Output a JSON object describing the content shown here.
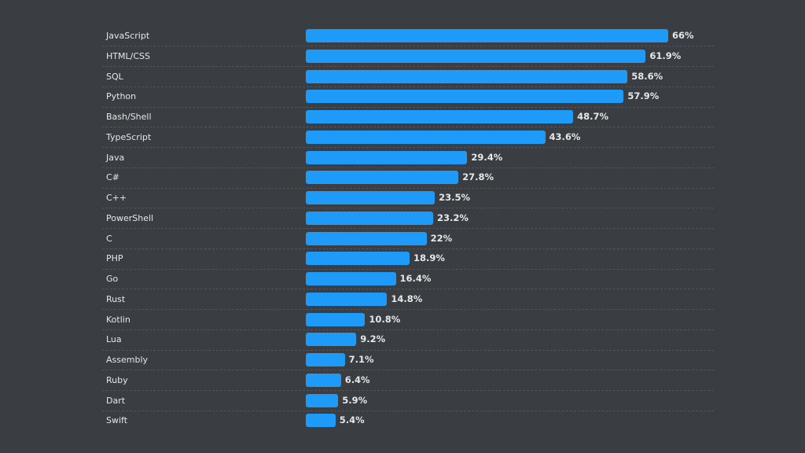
{
  "chart_data": {
    "type": "bar",
    "orientation": "horizontal",
    "title": "",
    "xlabel": "",
    "ylabel": "",
    "value_suffix": "%",
    "xlim": [
      0,
      66
    ],
    "grid": false,
    "legend": "none",
    "bar_color": "#1e9bf8",
    "background_color": "#3a3d42",
    "text_color": "#e6e7e9",
    "categories": [
      "JavaScript",
      "HTML/CSS",
      "SQL",
      "Python",
      "Bash/Shell",
      "TypeScript",
      "Java",
      "C#",
      "C++",
      "PowerShell",
      "C",
      "PHP",
      "Go",
      "Rust",
      "Kotlin",
      "Lua",
      "Assembly",
      "Ruby",
      "Dart",
      "Swift"
    ],
    "values": [
      66,
      61.9,
      58.6,
      57.9,
      48.7,
      43.6,
      29.4,
      27.8,
      23.5,
      23.2,
      22,
      18.9,
      16.4,
      14.8,
      10.8,
      9.2,
      7.1,
      6.4,
      5.9,
      5.4
    ],
    "value_labels": [
      "66%",
      "61.9%",
      "58.6%",
      "57.9%",
      "48.7%",
      "43.6%",
      "29.4%",
      "27.8%",
      "23.5%",
      "23.2%",
      "22%",
      "18.9%",
      "16.4%",
      "14.8%",
      "10.8%",
      "9.2%",
      "7.1%",
      "6.4%",
      "5.9%",
      "5.4%"
    ]
  }
}
